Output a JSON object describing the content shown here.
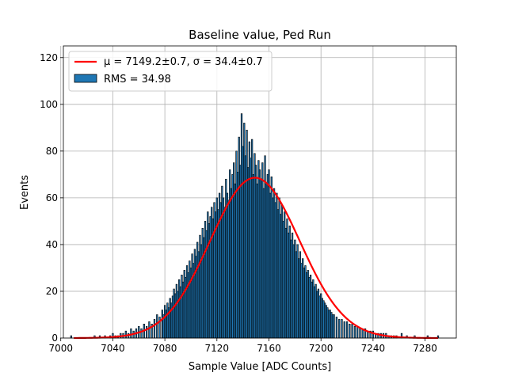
{
  "chart_data": {
    "type": "bar",
    "title": "Baseline value, Ped Run",
    "xlabel": "Sample Value [ADC Counts]",
    "ylabel": "Events",
    "xlim": [
      7002,
      7304
    ],
    "ylim": [
      0,
      125
    ],
    "xticks": [
      7000,
      7040,
      7080,
      7120,
      7160,
      7200,
      7240,
      7280
    ],
    "yticks": [
      0,
      20,
      40,
      60,
      80,
      100,
      120
    ],
    "grid": true,
    "legend_position": "top-left",
    "bin_width": 1,
    "histogram": {
      "name": "RMS = 34.98",
      "color": "#1f77b4",
      "edgecolor": "#000000",
      "bins": [
        [
          7008,
          1
        ],
        [
          7026,
          1
        ],
        [
          7030,
          1
        ],
        [
          7034,
          1
        ],
        [
          7038,
          1
        ],
        [
          7040,
          2
        ],
        [
          7042,
          1
        ],
        [
          7044,
          1
        ],
        [
          7046,
          2
        ],
        [
          7048,
          2
        ],
        [
          7050,
          3
        ],
        [
          7052,
          2
        ],
        [
          7054,
          4
        ],
        [
          7056,
          3
        ],
        [
          7058,
          4
        ],
        [
          7060,
          5
        ],
        [
          7062,
          4
        ],
        [
          7064,
          6
        ],
        [
          7066,
          5
        ],
        [
          7068,
          7
        ],
        [
          7070,
          6
        ],
        [
          7072,
          8
        ],
        [
          7074,
          10
        ],
        [
          7076,
          9
        ],
        [
          7078,
          12
        ],
        [
          7079,
          10
        ],
        [
          7080,
          14
        ],
        [
          7081,
          12
        ],
        [
          7082,
          15
        ],
        [
          7083,
          13
        ],
        [
          7084,
          17
        ],
        [
          7085,
          15
        ],
        [
          7086,
          18
        ],
        [
          7087,
          21
        ],
        [
          7088,
          19
        ],
        [
          7089,
          23
        ],
        [
          7090,
          20
        ],
        [
          7091,
          25
        ],
        [
          7092,
          22
        ],
        [
          7093,
          27
        ],
        [
          7094,
          24
        ],
        [
          7095,
          29
        ],
        [
          7096,
          26
        ],
        [
          7097,
          31
        ],
        [
          7098,
          28
        ],
        [
          7099,
          33
        ],
        [
          7100,
          30
        ],
        [
          7101,
          36
        ],
        [
          7102,
          32
        ],
        [
          7103,
          38
        ],
        [
          7104,
          35
        ],
        [
          7105,
          41
        ],
        [
          7106,
          37
        ],
        [
          7107,
          44
        ],
        [
          7108,
          40
        ],
        [
          7109,
          47
        ],
        [
          7110,
          43
        ],
        [
          7111,
          50
        ],
        [
          7112,
          46
        ],
        [
          7113,
          54
        ],
        [
          7114,
          49
        ],
        [
          7115,
          52
        ],
        [
          7116,
          56
        ],
        [
          7117,
          51
        ],
        [
          7118,
          58
        ],
        [
          7119,
          54
        ],
        [
          7120,
          60
        ],
        [
          7121,
          55
        ],
        [
          7122,
          62
        ],
        [
          7123,
          58
        ],
        [
          7124,
          65
        ],
        [
          7125,
          60
        ],
        [
          7126,
          56
        ],
        [
          7127,
          68
        ],
        [
          7128,
          62
        ],
        [
          7129,
          59
        ],
        [
          7130,
          72
        ],
        [
          7131,
          64
        ],
        [
          7132,
          70
        ],
        [
          7133,
          75
        ],
        [
          7134,
          66
        ],
        [
          7135,
          80
        ],
        [
          7136,
          71
        ],
        [
          7137,
          86
        ],
        [
          7138,
          74
        ],
        [
          7139,
          96
        ],
        [
          7140,
          82
        ],
        [
          7141,
          92
        ],
        [
          7142,
          78
        ],
        [
          7143,
          89
        ],
        [
          7144,
          73
        ],
        [
          7145,
          84
        ],
        [
          7146,
          77
        ],
        [
          7147,
          85
        ],
        [
          7148,
          70
        ],
        [
          7149,
          79
        ],
        [
          7150,
          74
        ],
        [
          7151,
          66
        ],
        [
          7152,
          76
        ],
        [
          7153,
          72
        ],
        [
          7154,
          68
        ],
        [
          7155,
          75
        ],
        [
          7156,
          64
        ],
        [
          7157,
          78
        ],
        [
          7158,
          66
        ],
        [
          7159,
          70
        ],
        [
          7160,
          72
        ],
        [
          7161,
          62
        ],
        [
          7162,
          69
        ],
        [
          7163,
          60
        ],
        [
          7164,
          64
        ],
        [
          7165,
          58
        ],
        [
          7166,
          62
        ],
        [
          7167,
          55
        ],
        [
          7168,
          60
        ],
        [
          7169,
          53
        ],
        [
          7170,
          57
        ],
        [
          7171,
          50
        ],
        [
          7172,
          54
        ],
        [
          7173,
          47
        ],
        [
          7174,
          51
        ],
        [
          7175,
          45
        ],
        [
          7176,
          48
        ],
        [
          7177,
          42
        ],
        [
          7178,
          45
        ],
        [
          7179,
          40
        ],
        [
          7180,
          42
        ],
        [
          7181,
          37
        ],
        [
          7182,
          40
        ],
        [
          7183,
          34
        ],
        [
          7184,
          37
        ],
        [
          7185,
          32
        ],
        [
          7186,
          34
        ],
        [
          7187,
          30
        ],
        [
          7188,
          31
        ],
        [
          7189,
          28
        ],
        [
          7190,
          29
        ],
        [
          7191,
          26
        ],
        [
          7192,
          27
        ],
        [
          7193,
          24
        ],
        [
          7194,
          25
        ],
        [
          7195,
          22
        ],
        [
          7196,
          23
        ],
        [
          7197,
          20
        ],
        [
          7198,
          21
        ],
        [
          7199,
          18
        ],
        [
          7200,
          19
        ],
        [
          7201,
          17
        ],
        [
          7202,
          16
        ],
        [
          7203,
          15
        ],
        [
          7204,
          14
        ],
        [
          7205,
          13
        ],
        [
          7206,
          12
        ],
        [
          7207,
          12
        ],
        [
          7208,
          11
        ],
        [
          7209,
          10
        ],
        [
          7210,
          10
        ],
        [
          7212,
          9
        ],
        [
          7214,
          8
        ],
        [
          7216,
          8
        ],
        [
          7218,
          7
        ],
        [
          7220,
          7
        ],
        [
          7222,
          6
        ],
        [
          7224,
          6
        ],
        [
          7226,
          5
        ],
        [
          7228,
          5
        ],
        [
          7230,
          4
        ],
        [
          7232,
          4
        ],
        [
          7234,
          4
        ],
        [
          7236,
          3
        ],
        [
          7238,
          3
        ],
        [
          7240,
          3
        ],
        [
          7242,
          2
        ],
        [
          7244,
          2
        ],
        [
          7246,
          2
        ],
        [
          7248,
          2
        ],
        [
          7250,
          2
        ],
        [
          7252,
          1
        ],
        [
          7254,
          1
        ],
        [
          7256,
          1
        ],
        [
          7258,
          1
        ],
        [
          7262,
          2
        ],
        [
          7266,
          1
        ],
        [
          7272,
          1
        ],
        [
          7282,
          1
        ],
        [
          7290,
          1
        ]
      ]
    },
    "fit": {
      "name_prefix": "μ = 7149.2±0.7, σ = 34.4±0.7",
      "color": "#ff0000",
      "mu": 7149.2,
      "sigma": 34.4,
      "amplitude": 68.6,
      "x_range": [
        7010,
        7290
      ]
    }
  }
}
